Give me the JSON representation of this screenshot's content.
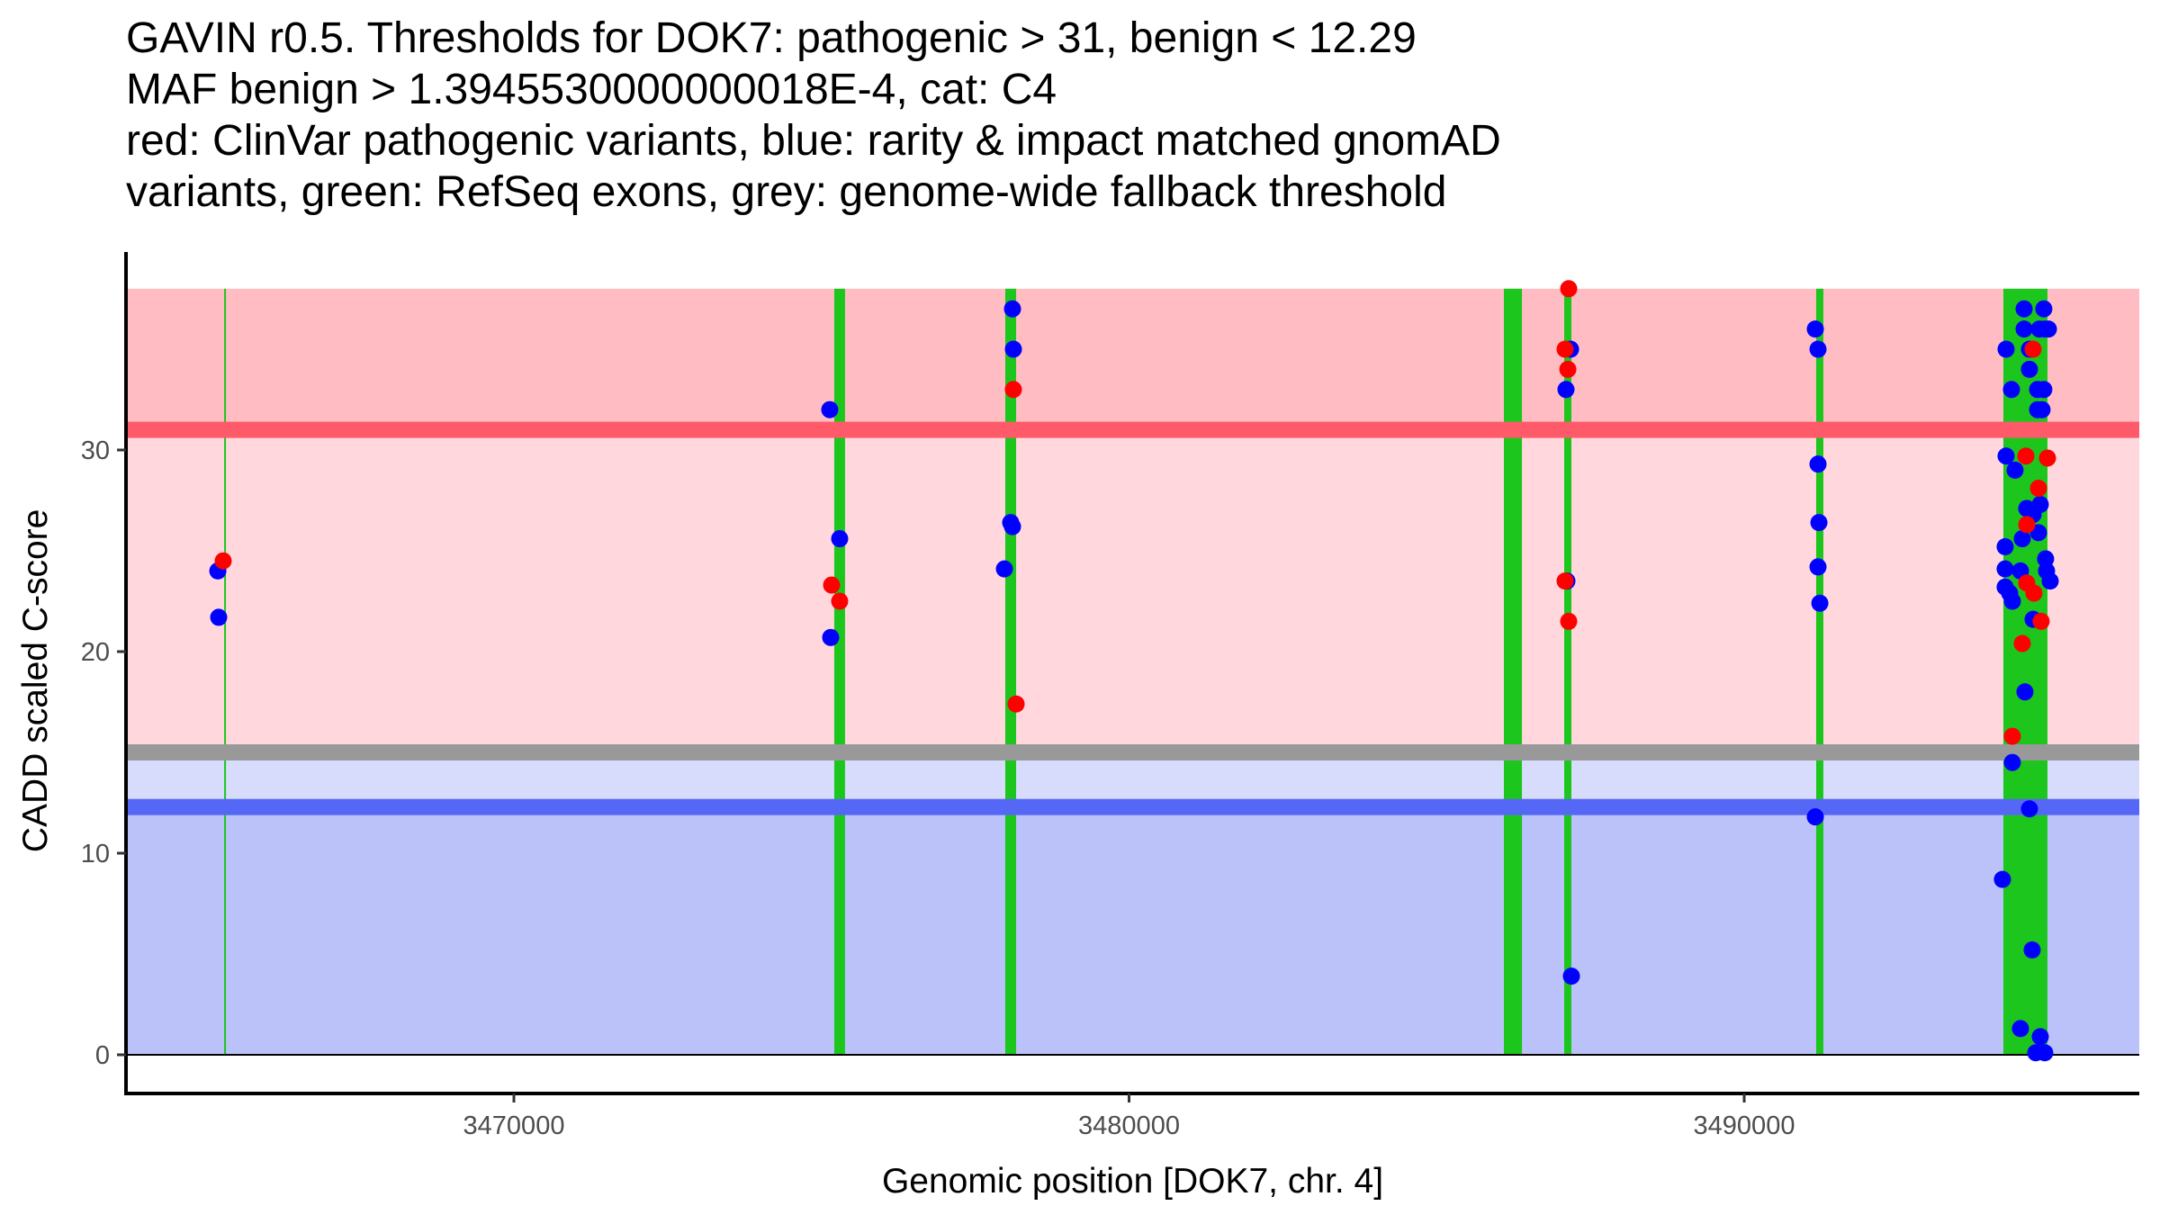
{
  "title_lines": [
    "GAVIN r0.5. Thresholds for DOK7: pathogenic > 31, benign < 12.29",
    "MAF benign > 1.3945530000000018E-4, cat: C4",
    "red: ClinVar pathogenic variants, blue: rarity & impact matched gnomAD",
    "variants, green: RefSeq exons, grey: genome-wide fallback threshold"
  ],
  "colors": {
    "pathogenic_point": "#ff0000",
    "benign_point": "#0000ff",
    "exon": "#1cc61c",
    "pathogenic_line": "#ff5a69",
    "benign_line": "#5568f5",
    "fallback_line": "#999999",
    "zone_pathogenic_strong": "#ffbcc2",
    "zone_pathogenic_light": "#ffd7dc",
    "zone_lavender": "#d8dcfc",
    "zone_benign": "#bbc1f9"
  },
  "chart_data": {
    "type": "scatter",
    "title": "GAVIN r0.5. Thresholds for DOK7: pathogenic > 31, benign < 12.29 | MAF benign > 1.3945530000000018E-4, cat: C4",
    "xlabel": "Genomic position [DOK7, chr. 4]",
    "ylabel": "CADD scaled C-score",
    "xlim": [
      3463700,
      3496420
    ],
    "ylim": [
      -1.8,
      39.8
    ],
    "x_ticks": [
      3470000,
      3480000,
      3490000
    ],
    "x_tick_labels": [
      "3470000",
      "3480000",
      "3490000"
    ],
    "y_ticks": [
      0,
      10,
      20,
      30
    ],
    "y_tick_labels": [
      "0",
      "10",
      "20",
      "30"
    ],
    "grid": false,
    "legend": "none (described in title)",
    "thresholds": {
      "pathogenic": 31,
      "benign": 12.29,
      "genome_wide_fallback": 15,
      "zone_top": 38
    },
    "exons": [
      {
        "start": 3465290,
        "end": 3465318
      },
      {
        "start": 3475208,
        "end": 3475383
      },
      {
        "start": 3477988,
        "end": 3478164
      },
      {
        "start": 3486094,
        "end": 3486387
      },
      {
        "start": 3487074,
        "end": 3487191
      },
      {
        "start": 3491170,
        "end": 3491287
      },
      {
        "start": 3494213,
        "end": 3494930
      }
    ],
    "series": [
      {
        "name": "gnomAD (rarity & impact matched)",
        "color": "blue",
        "points": [
          [
            3465187,
            24.0
          ],
          [
            3465201,
            21.7
          ],
          [
            3475135,
            32.0
          ],
          [
            3475296,
            25.6
          ],
          [
            3475150,
            20.7
          ],
          [
            3478105,
            37.0
          ],
          [
            3478120,
            35.0
          ],
          [
            3478076,
            26.4
          ],
          [
            3478105,
            26.2
          ],
          [
            3477974,
            24.1
          ],
          [
            3487177,
            35.0
          ],
          [
            3487103,
            33.0
          ],
          [
            3487118,
            23.5
          ],
          [
            3487191,
            3.9
          ],
          [
            3491156,
            36.0
          ],
          [
            3491200,
            35.0
          ],
          [
            3491200,
            29.3
          ],
          [
            3491215,
            26.4
          ],
          [
            3491200,
            24.2
          ],
          [
            3491230,
            22.4
          ],
          [
            3491156,
            11.8
          ],
          [
            3494550,
            37.0
          ],
          [
            3494871,
            37.0
          ],
          [
            3494550,
            36.0
          ],
          [
            3494798,
            36.0
          ],
          [
            3494886,
            36.0
          ],
          [
            3494945,
            36.0
          ],
          [
            3494257,
            35.0
          ],
          [
            3494637,
            35.0
          ],
          [
            3494637,
            34.0
          ],
          [
            3494345,
            33.0
          ],
          [
            3494769,
            33.0
          ],
          [
            3494871,
            33.0
          ],
          [
            3494769,
            32.0
          ],
          [
            3494842,
            32.0
          ],
          [
            3494257,
            29.7
          ],
          [
            3494403,
            29.0
          ],
          [
            3494813,
            27.3
          ],
          [
            3494593,
            27.1
          ],
          [
            3494696,
            26.8
          ],
          [
            3494520,
            25.6
          ],
          [
            3494784,
            25.9
          ],
          [
            3494242,
            25.2
          ],
          [
            3494900,
            24.6
          ],
          [
            3494242,
            24.1
          ],
          [
            3494491,
            24.0
          ],
          [
            3494915,
            24.0
          ],
          [
            3494974,
            23.5
          ],
          [
            3494242,
            23.2
          ],
          [
            3494315,
            22.9
          ],
          [
            3494359,
            22.5
          ],
          [
            3494696,
            21.6
          ],
          [
            3494564,
            18.0
          ],
          [
            3494359,
            14.5
          ],
          [
            3494637,
            12.2
          ],
          [
            3494198,
            8.7
          ],
          [
            3494681,
            5.2
          ],
          [
            3494491,
            1.3
          ],
          [
            3494813,
            0.9
          ],
          [
            3494740,
            0.1
          ],
          [
            3494886,
            0.1
          ]
        ]
      },
      {
        "name": "ClinVar pathogenic",
        "color": "red",
        "points": [
          [
            3465274,
            24.5
          ],
          [
            3475165,
            23.3
          ],
          [
            3475296,
            22.5
          ],
          [
            3478120,
            33.0
          ],
          [
            3478164,
            17.4
          ],
          [
            3487147,
            38.0
          ],
          [
            3487088,
            35.0
          ],
          [
            3487133,
            34.0
          ],
          [
            3487088,
            23.5
          ],
          [
            3487147,
            21.5
          ],
          [
            3494696,
            35.0
          ],
          [
            3494579,
            29.7
          ],
          [
            3494930,
            29.6
          ],
          [
            3494784,
            28.1
          ],
          [
            3494593,
            26.3
          ],
          [
            3494593,
            23.4
          ],
          [
            3494710,
            22.9
          ],
          [
            3494827,
            21.5
          ],
          [
            3494520,
            20.4
          ],
          [
            3494359,
            15.8
          ]
        ]
      }
    ]
  }
}
